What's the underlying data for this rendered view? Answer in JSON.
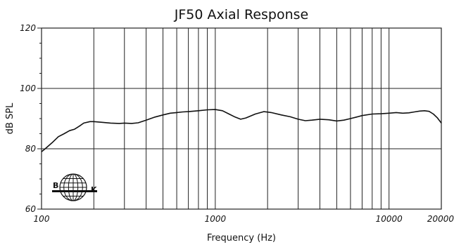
{
  "chart_data": {
    "type": "line",
    "title": "JF50 Axial Response",
    "xlabel": "Frequency (Hz)",
    "ylabel": "dB SPL",
    "x_scale": "log",
    "xlim": [
      100,
      20000
    ],
    "ylim": [
      60,
      120
    ],
    "x_ticks": [
      100,
      1000,
      10000,
      20000
    ],
    "x_tick_labels": [
      "100",
      "1000",
      "10000",
      "20000"
    ],
    "y_ticks": [
      60,
      80,
      100,
      120
    ],
    "y_tick_labels": [
      "60",
      "80",
      "100",
      "120"
    ],
    "grid": true,
    "series": [
      {
        "x": [
          100,
          105,
          115,
          125,
          135,
          145,
          155,
          165,
          175,
          190,
          200,
          220,
          250,
          280,
          300,
          330,
          360,
          400,
          450,
          500,
          550,
          600,
          650,
          700,
          800,
          900,
          1000,
          1100,
          1200,
          1300,
          1400,
          1500,
          1700,
          1900,
          2100,
          2400,
          2700,
          3000,
          3300,
          3600,
          4000,
          4500,
          5000,
          5500,
          6000,
          6500,
          7000,
          8000,
          9000,
          10000,
          11000,
          12000,
          13000,
          14000,
          15000,
          16000,
          17000,
          18000,
          19000,
          20000
        ],
        "values": [
          79.0,
          80.0,
          82.0,
          84.0,
          85.0,
          86.0,
          86.5,
          87.5,
          88.5,
          89.0,
          89.0,
          88.8,
          88.5,
          88.4,
          88.5,
          88.4,
          88.6,
          89.5,
          90.5,
          91.2,
          91.8,
          92.0,
          92.2,
          92.3,
          92.6,
          92.9,
          93.0,
          92.6,
          91.5,
          90.5,
          89.8,
          90.2,
          91.5,
          92.3,
          92.0,
          91.2,
          90.6,
          89.8,
          89.3,
          89.5,
          89.8,
          89.6,
          89.2,
          89.5,
          90.0,
          90.5,
          91.0,
          91.5,
          91.6,
          91.8,
          92.0,
          91.8,
          91.9,
          92.2,
          92.5,
          92.6,
          92.4,
          91.5,
          90.2,
          88.5
        ]
      }
    ],
    "logo_text": [
      "B",
      "K"
    ]
  }
}
